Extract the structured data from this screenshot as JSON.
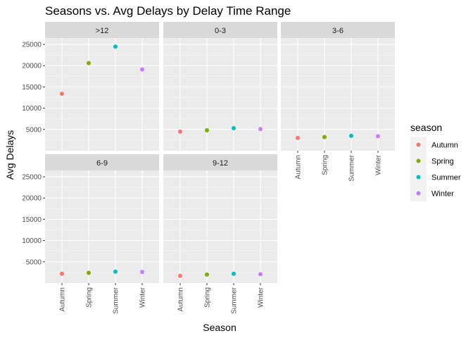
{
  "chart_data": {
    "type": "scatter",
    "title": "Seasons vs. Avg Delays by Delay Time Range",
    "xlabel": "Season",
    "ylabel": "Avg Delays",
    "categories": [
      "Autumn",
      "Spring",
      "Summer",
      "Winter"
    ],
    "y_ticks": [
      5000,
      10000,
      15000,
      20000,
      25000
    ],
    "y_tick_labels": [
      "5000",
      "10000",
      "15000",
      "20000",
      "25000"
    ],
    "ylim": [
      0,
      26500
    ],
    "grid": true,
    "legend": {
      "title": "season",
      "position": "right",
      "entries": [
        {
          "label": "Autumn",
          "color": "#F8766D"
        },
        {
          "label": "Spring",
          "color": "#7CAE00"
        },
        {
          "label": "Summer",
          "color": "#00BFC4"
        },
        {
          "label": "Winter",
          "color": "#C77CFF"
        }
      ]
    },
    "facets": [
      {
        "label": ">12",
        "values": [
          13400,
          20600,
          24500,
          19100
        ]
      },
      {
        "label": "0-3",
        "values": [
          4500,
          4800,
          5300,
          5100
        ]
      },
      {
        "label": "3-6",
        "values": [
          3000,
          3200,
          3500,
          3400
        ]
      },
      {
        "label": "6-9",
        "values": [
          2200,
          2400,
          2700,
          2600
        ]
      },
      {
        "label": "9-12",
        "values": [
          1700,
          2000,
          2200,
          2100
        ]
      }
    ]
  }
}
